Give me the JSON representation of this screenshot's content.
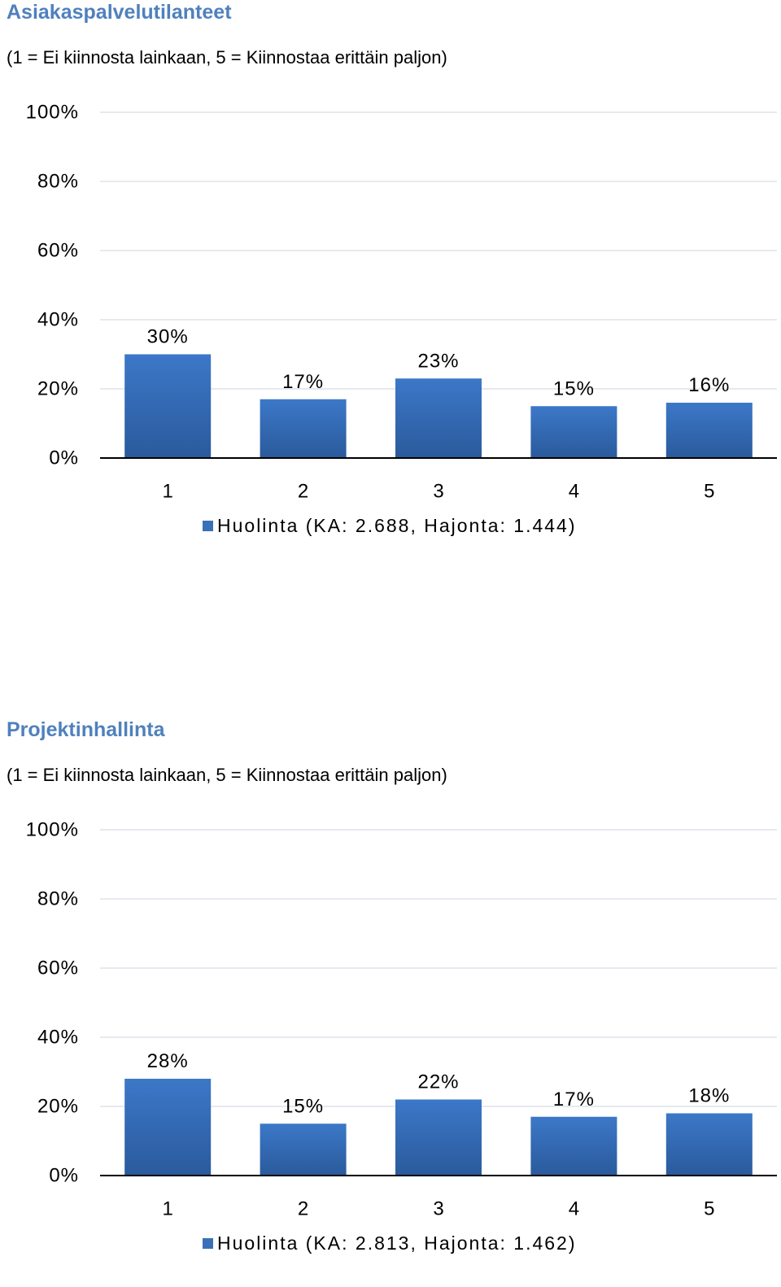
{
  "charts": [
    {
      "title": "Asiakaspalvelutilanteet",
      "subtitle": "(1 = Ei kiinnosta lainkaan, 5 = Kiinnostaa erittäin paljon)",
      "legend": "Huolinta (KA: 2.688, Hajonta: 1.444)"
    },
    {
      "title": "Projektinhallinta",
      "subtitle": "(1 = Ei kiinnosta lainkaan, 5 = Kiinnostaa erittäin paljon)",
      "legend": "Huolinta (KA: 2.813, Hajonta: 1.462)"
    }
  ],
  "colors": {
    "title": "#4f81bd",
    "bar_top": "#3c78c8",
    "bar_bottom": "#2a5a9c",
    "legend_marker": "#3a70b8",
    "grid": "#dde4ea",
    "axis": "#000000"
  },
  "chart_data": [
    {
      "type": "bar",
      "title": "Asiakaspalvelutilanteet",
      "categories": [
        "1",
        "2",
        "3",
        "4",
        "5"
      ],
      "series": [
        {
          "name": "Huolinta (KA: 2.688, Hajonta: 1.444)",
          "values": [
            30,
            17,
            23,
            15,
            16
          ],
          "labels": [
            "30%",
            "17%",
            "23%",
            "15%",
            "16%"
          ]
        }
      ],
      "yticks": [
        "0%",
        "20%",
        "40%",
        "60%",
        "80%",
        "100%"
      ],
      "ylim": [
        0,
        100
      ],
      "grid": true,
      "legend_position": "bottom"
    },
    {
      "type": "bar",
      "title": "Projektinhallinta",
      "categories": [
        "1",
        "2",
        "3",
        "4",
        "5"
      ],
      "series": [
        {
          "name": "Huolinta (KA: 2.813, Hajonta: 1.462)",
          "values": [
            28,
            15,
            22,
            17,
            18
          ],
          "labels": [
            "28%",
            "15%",
            "22%",
            "17%",
            "18%"
          ]
        }
      ],
      "yticks": [
        "0%",
        "20%",
        "40%",
        "60%",
        "80%",
        "100%"
      ],
      "ylim": [
        0,
        100
      ],
      "grid": true,
      "legend_position": "bottom"
    }
  ]
}
